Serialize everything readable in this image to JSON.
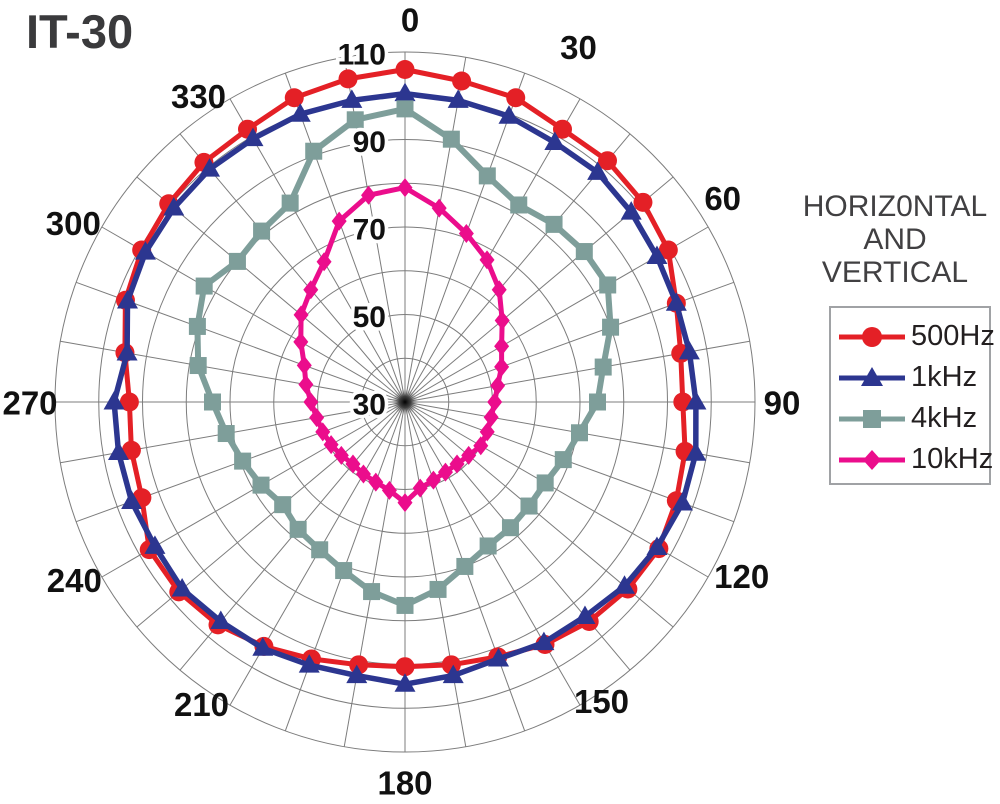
{
  "page": {
    "title": "IT-30"
  },
  "legend": {
    "title_lines": [
      "HORIZ0NTAL",
      "AND",
      "VERTICAL"
    ],
    "items": [
      {
        "label": "500Hz",
        "color": "#e42026",
        "marker": "circle"
      },
      {
        "label": "1kHz",
        "color": "#2c3690",
        "marker": "triangle"
      },
      {
        "label": "4kHz",
        "color": "#7e9e9a",
        "marker": "square"
      },
      {
        "label": "10kHz",
        "color": "#eb0d8c",
        "marker": "diamond"
      }
    ]
  },
  "chart_data": {
    "type": "line",
    "polar": true,
    "title": "IT-30",
    "subtitle": "HORIZ0NTAL AND VERTICAL",
    "grid": true,
    "legend_position": "right",
    "angle_step_deg": 10,
    "angles_deg": [
      0,
      10,
      20,
      30,
      40,
      50,
      60,
      70,
      80,
      90,
      100,
      110,
      120,
      130,
      140,
      150,
      160,
      170,
      180,
      190,
      200,
      210,
      220,
      230,
      240,
      250,
      260,
      270,
      280,
      290,
      300,
      310,
      320,
      330,
      340,
      350
    ],
    "angle_tick_labels": [
      "0",
      "30",
      "60",
      "90",
      "120",
      "150",
      "180",
      "210",
      "240",
      "270",
      "300",
      "330"
    ],
    "radial_axis": {
      "min": 30,
      "max": 110,
      "ring_step": 10,
      "tick_labels": [
        "30",
        "50",
        "70",
        "90",
        "110"
      ],
      "tick_values": [
        30,
        50,
        70,
        90,
        110
      ]
    },
    "series": [
      {
        "name": "500Hz",
        "marker": "circle",
        "color": "#e42026",
        "values": [
          106,
          104.5,
          104,
          102,
          102,
          101,
          99.5,
          96,
          94,
          93.5,
          95,
          96,
          97,
          96.5,
          95.5,
          94,
          92,
          91,
          90.5,
          91,
          92.5,
          94.5,
          96.5,
          97.5,
          97.5,
          94,
          93.5,
          93,
          95,
          98,
          99.5,
          100.5,
          101.5,
          102,
          104,
          105
        ]
      },
      {
        "name": "1kHz",
        "marker": "triangle",
        "color": "#2c3690",
        "values": [
          100.5,
          100,
          99.5,
          98.5,
          98.5,
          97.5,
          96.5,
          96,
          96,
          96.5,
          97.5,
          97.5,
          96.5,
          95.5,
          94,
          93.5,
          92.5,
          93.5,
          94.5,
          93.5,
          94,
          95,
          95.5,
          96.5,
          96,
          96.5,
          96.5,
          96.5,
          94.5,
          97.5,
          98.5,
          99,
          99.5,
          99.5,
          100,
          100
        ]
      },
      {
        "name": "4kHz",
        "marker": "square",
        "color": "#7e9e9a",
        "values": [
          97,
          91,
          85,
          82,
          83,
          83.5,
          83.5,
          80,
          76,
          74,
          70.5,
          68.5,
          67,
          67,
          67.5,
          68,
          70,
          73.5,
          76.5,
          74,
          71,
          69,
          68,
          66.5,
          68,
          69.5,
          71.5,
          74,
          78,
          80.5,
          83,
          80,
          81,
          82.5,
          91,
          95.5
        ]
      },
      {
        "name": "10kHz",
        "marker": "diamond",
        "color": "#eb0d8c",
        "values": [
          79,
          75,
          71,
          67.5,
          63.5,
          59,
          55.5,
          53.5,
          51.5,
          50.5,
          50,
          50,
          50,
          49,
          48.5,
          48.5,
          49,
          50,
          53,
          50.5,
          49.5,
          49,
          48.5,
          49,
          49.5,
          50,
          50.5,
          51.5,
          53,
          54.5,
          57.5,
          61,
          63.5,
          67,
          74,
          78
        ]
      }
    ],
    "colors": {
      "grid": "#7c7c7c",
      "axis_text": "#111111",
      "title_text": "#3a3a3c",
      "background": "#ffffff"
    }
  }
}
